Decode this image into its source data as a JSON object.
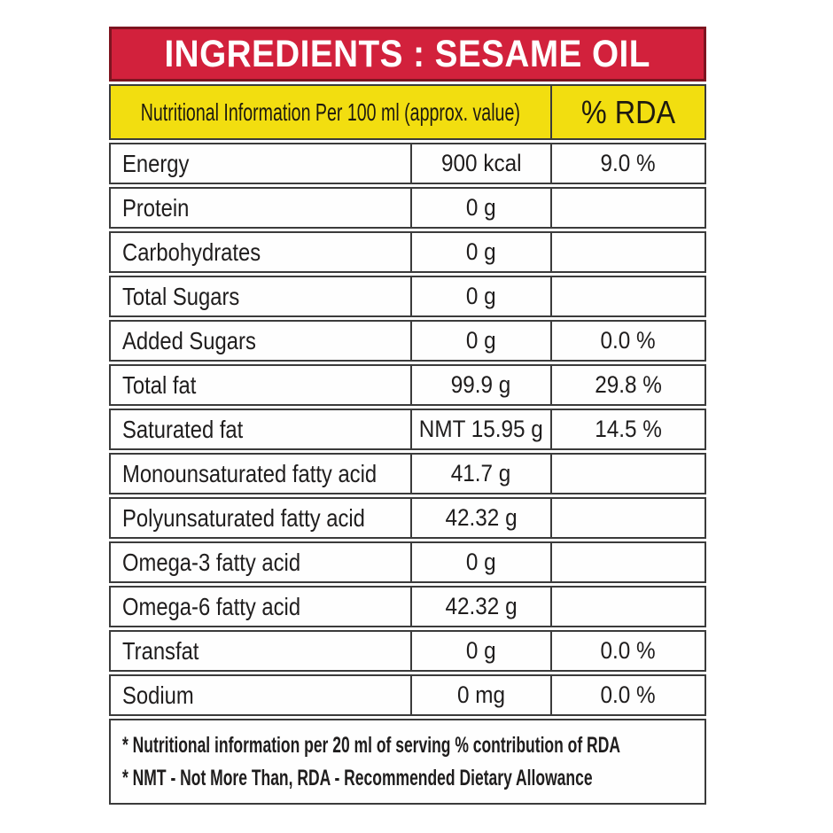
{
  "header": {
    "title": "INGREDIENTS : SESAME OIL"
  },
  "table": {
    "col1_header": "Nutritional Information Per 100 ml (approx. value)",
    "col2_header": "% RDA",
    "rows": [
      {
        "name": "Energy",
        "value": "900 kcal",
        "rda": "9.0 %"
      },
      {
        "name": "Protein",
        "value": "0 g",
        "rda": ""
      },
      {
        "name": "Carbohydrates",
        "value": "0 g",
        "rda": ""
      },
      {
        "name": "Total Sugars",
        "value": "0 g",
        "rda": ""
      },
      {
        "name": "Added Sugars",
        "value": "0 g",
        "rda": "0.0 %"
      },
      {
        "name": "Total fat",
        "value": "99.9 g",
        "rda": "29.8 %"
      },
      {
        "name": "Saturated fat",
        "value": "NMT 15.95 g",
        "rda": "14.5 %"
      },
      {
        "name": "Monounsaturated fatty acid",
        "value": "41.7 g",
        "rda": ""
      },
      {
        "name": "Polyunsaturated fatty acid",
        "value": "42.32 g",
        "rda": ""
      },
      {
        "name": "Omega-3 fatty acid",
        "value": "0 g",
        "rda": ""
      },
      {
        "name": "Omega-6 fatty acid",
        "value": "42.32 g",
        "rda": ""
      },
      {
        "name": "Transfat",
        "value": "0 g",
        "rda": "0.0 %"
      },
      {
        "name": "Sodium",
        "value": "0 mg",
        "rda": "0.0 %"
      }
    ],
    "footnotes": [
      "* Nutritional information per 20 ml of serving % contribution of RDA",
      "* NMT - Not More Than,   RDA - Recommended Dietary Allowance"
    ]
  },
  "colors": {
    "band_red": "#d2213c",
    "band_red_border": "#7d1420",
    "header_yellow": "#f2de10",
    "border_dark": "#3b3b3b",
    "title_text": "#ffffff",
    "body_text": "#1f1d1d"
  }
}
